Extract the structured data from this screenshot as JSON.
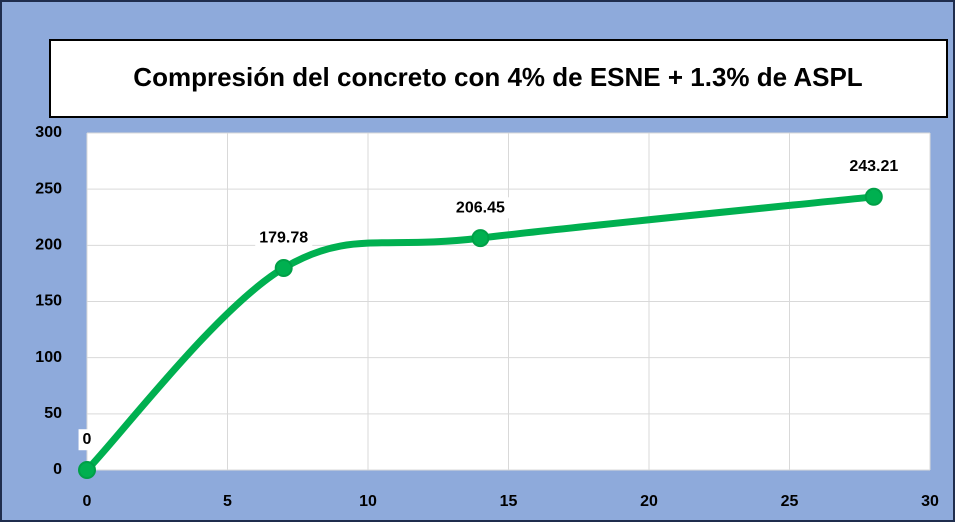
{
  "chart_data": {
    "type": "line",
    "title": "Compresión del concreto con 4% de ESNE + 1.3% de ASPL",
    "x": [
      0,
      7,
      14,
      28
    ],
    "values": [
      0,
      179.78,
      206.45,
      243.21
    ],
    "color": "#00b050",
    "xlim": [
      0,
      30
    ],
    "xticks": [
      0,
      5,
      10,
      15,
      20,
      25,
      30
    ],
    "ylim": [
      0,
      300
    ],
    "yticks": [
      0,
      50,
      100,
      150,
      200,
      250,
      300
    ],
    "grid": true,
    "smooth": true
  }
}
